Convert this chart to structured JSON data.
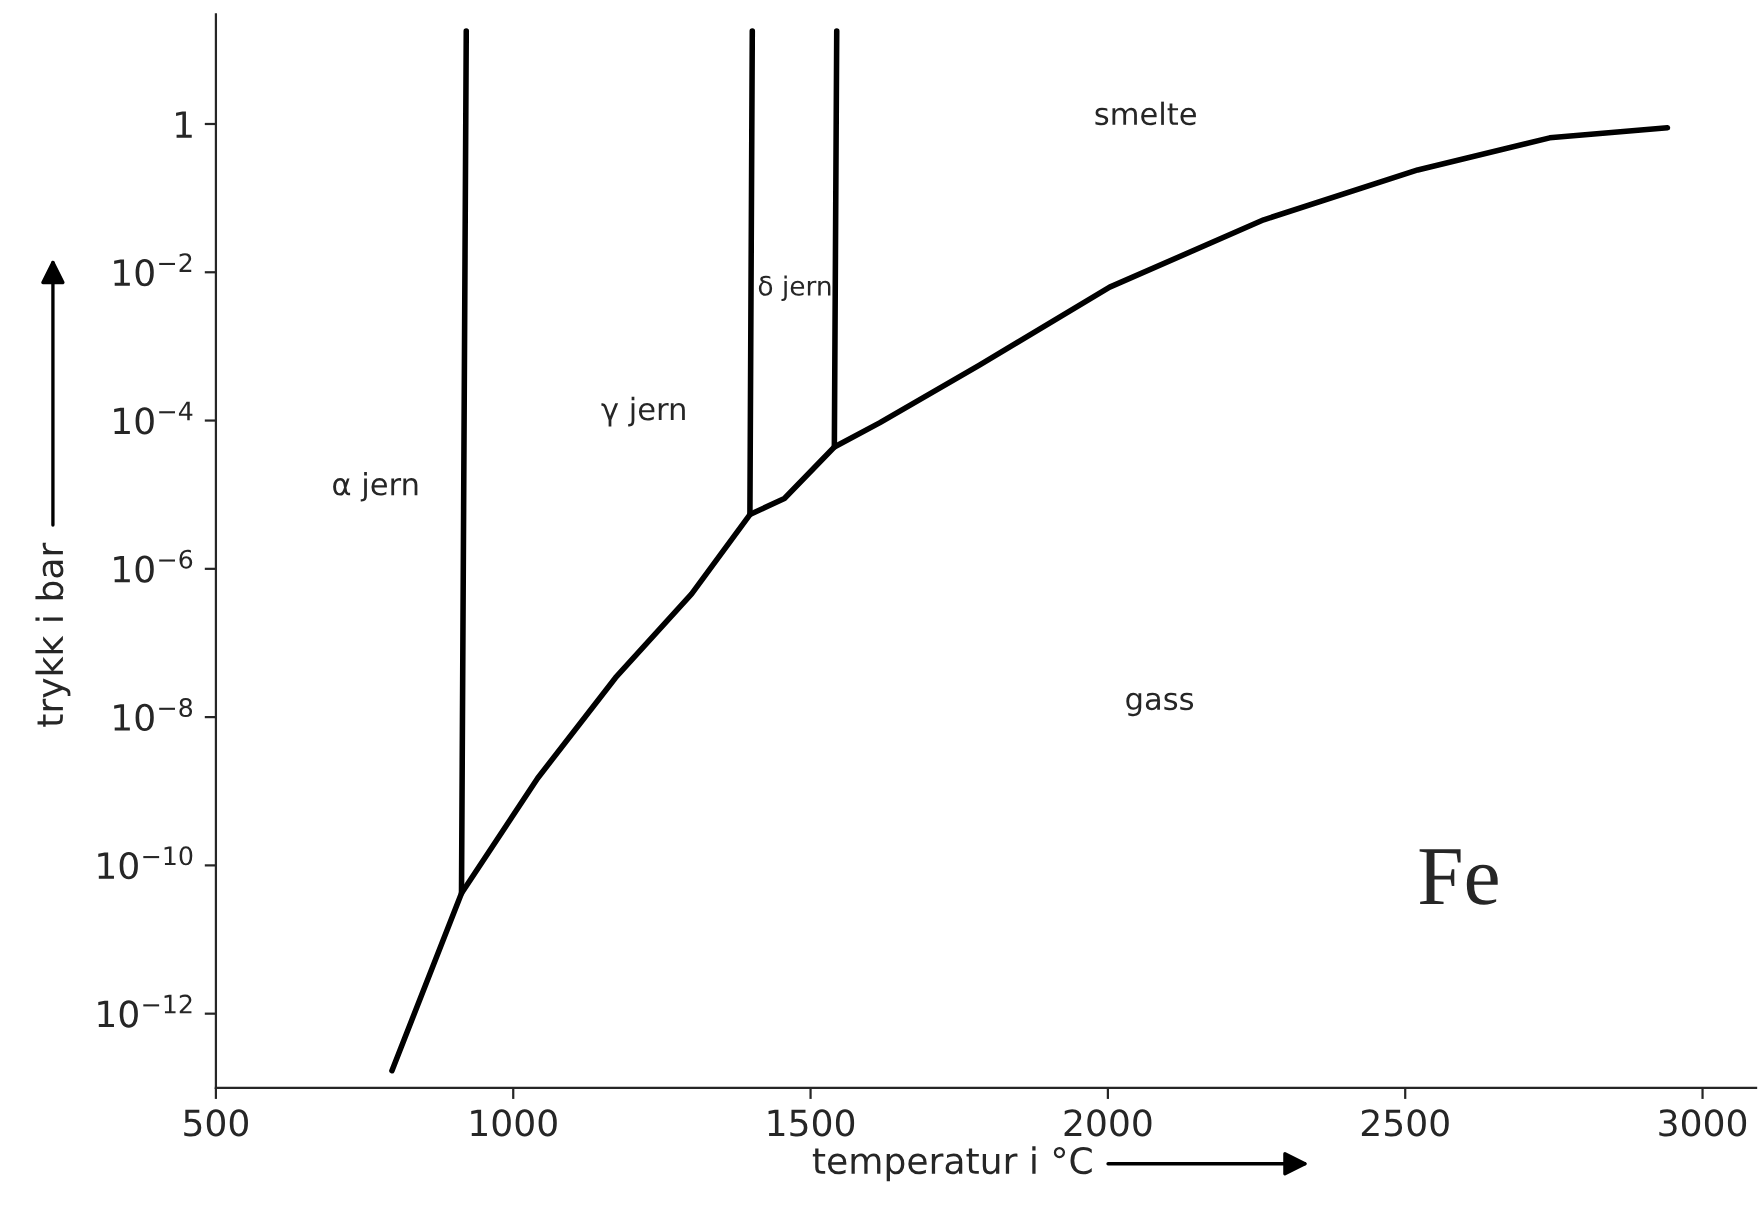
{
  "chart_data": {
    "type": "line",
    "xlabel": "temperatur i °C",
    "ylabel": "trykk i bar",
    "log": "y",
    "xlim": [
      500,
      3090
    ],
    "ylim": [
      1e-13,
      30
    ],
    "xticks": [
      500,
      1000,
      1500,
      2000,
      2500,
      3000
    ],
    "yticks": [
      {
        "value": 1,
        "label": "1"
      },
      {
        "value": 0.01,
        "label": "10$^{−2}$"
      },
      {
        "value": 0.0001,
        "label": "10$^{−4}$"
      },
      {
        "value": 1e-06,
        "label": "10$^{−6}$"
      },
      {
        "value": 1e-08,
        "label": "10$^{−8}$"
      },
      {
        "value": 1e-10,
        "label": "10$^{−10}$"
      },
      {
        "value": 1e-12,
        "label": "10$^{−12}$"
      }
    ],
    "grid": false,
    "legend": false,
    "marker": "none",
    "line_style": "solid",
    "series": [
      {
        "color": "#000000",
        "x": [
          796,
          913,
          1041,
          1172,
          1300,
          1398,
          1456,
          1540,
          1616,
          1784,
          2003,
          2262,
          2521,
          2743,
          2941
        ],
        "values": [
          1.7e-13,
          4.2e-11,
          1.5e-09,
          3.4e-08,
          4.6e-07,
          5.4e-06,
          8.9e-06,
          4.4e-05,
          9.3e-05,
          0.00056,
          0.0063,
          0.051,
          0.24,
          0.65,
          0.89
        ]
      },
      {
        "color": "#000000",
        "x": [
          913,
          921
        ],
        "values": [
          4.2e-11,
          18
        ]
      },
      {
        "color": "#000000",
        "x": [
          1398,
          1402
        ],
        "values": [
          5.4e-06,
          18
        ]
      },
      {
        "color": "#000000",
        "x": [
          1540,
          1544
        ],
        "values": [
          4.4e-05,
          18
        ]
      }
    ],
    "annotations": [
      "α jern",
      "γ jern",
      "δ jern",
      "smelte",
      "gass",
      "Fe"
    ]
  }
}
